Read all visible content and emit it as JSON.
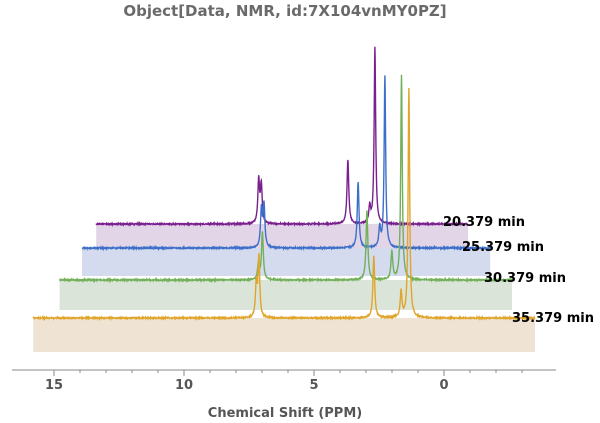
{
  "chart_data": {
    "type": "line",
    "title": "Object[Data, NMR, id:7X104vnMY0PZ]",
    "xlabel": "Chemical Shift  (PPM)",
    "ylabel": "",
    "x_reversed": true,
    "xlim": [
      15.9,
      -3.5
    ],
    "x_ticks": [
      "15",
      "10",
      "5",
      "0"
    ],
    "x_tick_values": [
      15,
      10,
      5,
      0
    ],
    "series": [
      {
        "name": "20.379 min",
        "color": "#7a1f8e",
        "fill": "#e2d5e7",
        "x_range": [
          13.3,
          -1.0
        ],
        "peaks": [
          {
            "x": 7.05,
            "h": 43,
            "w": 0.04
          },
          {
            "x": 6.95,
            "h": 38,
            "w": 0.04
          },
          {
            "x": 3.62,
            "h": 64,
            "w": 0.04
          },
          {
            "x": 2.78,
            "h": 16,
            "w": 0.04
          },
          {
            "x": 2.58,
            "h": 176,
            "w": 0.035
          }
        ]
      },
      {
        "name": "25.379 min",
        "color": "#3d6fc9",
        "fill": "#d4dbee",
        "x_range": [
          14.0,
          -1.7
        ],
        "peaks": [
          {
            "x": 7.1,
            "h": 38,
            "w": 0.04
          },
          {
            "x": 7.0,
            "h": 42,
            "w": 0.04
          },
          {
            "x": 3.38,
            "h": 66,
            "w": 0.04
          },
          {
            "x": 2.55,
            "h": 20,
            "w": 0.04
          },
          {
            "x": 2.35,
            "h": 172,
            "w": 0.035
          }
        ]
      },
      {
        "name": "30.379 min",
        "color": "#72b05a",
        "fill": "#dbe4d8",
        "x_range": [
          14.9,
          -2.5
        ],
        "peaks": [
          {
            "x": 7.25,
            "h": 16,
            "w": 0.04
          },
          {
            "x": 7.1,
            "h": 48,
            "w": 0.04
          },
          {
            "x": 3.08,
            "h": 70,
            "w": 0.04
          },
          {
            "x": 2.12,
            "h": 28,
            "w": 0.04
          },
          {
            "x": 1.75,
            "h": 205,
            "w": 0.035
          }
        ]
      },
      {
        "name": "35.379 min",
        "color": "#e0a52a",
        "fill": "#efe4d4",
        "x_range": [
          15.8,
          -3.5
        ],
        "peaks": [
          {
            "x": 7.22,
            "h": 32,
            "w": 0.04
          },
          {
            "x": 7.12,
            "h": 60,
            "w": 0.04
          },
          {
            "x": 2.7,
            "h": 62,
            "w": 0.04
          },
          {
            "x": 1.65,
            "h": 26,
            "w": 0.04
          },
          {
            "x": 1.35,
            "h": 230,
            "w": 0.035
          }
        ]
      }
    ]
  }
}
